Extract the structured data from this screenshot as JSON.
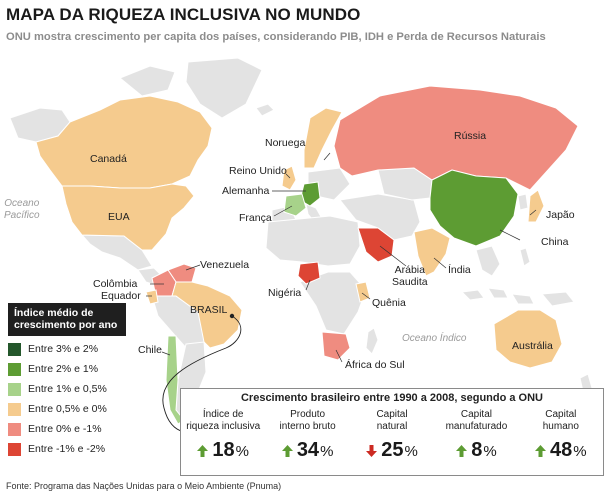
{
  "header": {
    "title": "MAPA DA RIQUEZA INCLUSIVA NO MUNDO",
    "subtitle": "ONU mostra crescimento per capita dos países, considerando PIB, IDH e Perda de Recursos Naturais"
  },
  "colors": {
    "land_neutral": "#e3e3e3",
    "land_border": "#ffffff",
    "water": "#ffffff"
  },
  "map": {
    "oceans": {
      "pacific": "Oceano\nPacífico",
      "indian": "Oceano Índico"
    },
    "countries": [
      {
        "name": "Canadá",
        "category": "0,5% e 0%"
      },
      {
        "name": "EUA",
        "category": "0,5% e 0%"
      },
      {
        "name": "Venezuela",
        "category": "0% e -1%"
      },
      {
        "name": "Colômbia",
        "category": "0% e -1%"
      },
      {
        "name": "Equador",
        "category": "0,5% e 0%"
      },
      {
        "name": "BRASIL",
        "category": "0,5% e 0%"
      },
      {
        "name": "Chile",
        "category": "1% e 0,5%"
      },
      {
        "name": "Noruega",
        "category": "0,5% e 0%"
      },
      {
        "name": "Reino Unido",
        "category": "0,5% e 0%"
      },
      {
        "name": "Alemanha",
        "category": "2% e 1%"
      },
      {
        "name": "França",
        "category": "1% e 0,5%"
      },
      {
        "name": "Rússia",
        "category": "0% e -1%"
      },
      {
        "name": "China",
        "category": "2% e 1%"
      },
      {
        "name": "Japão",
        "category": "0,5% e 0%"
      },
      {
        "name": "Índia",
        "category": "0,5% e 0%"
      },
      {
        "name": "Arábia\nSaudita",
        "category": "-1% e -2%"
      },
      {
        "name": "Nigéria",
        "category": "-1% e -2%"
      },
      {
        "name": "Quênia",
        "category": "0,5% e 0%"
      },
      {
        "name": "África do Sul",
        "category": "0% e -1%"
      },
      {
        "name": "Austrália",
        "category": "0,5% e 0%"
      }
    ]
  },
  "legend": {
    "title": "Índice médio de crescimento por ano",
    "items": [
      {
        "label": "Entre 3% e 2%",
        "color": "#24572b"
      },
      {
        "label": "Entre 2% e 1%",
        "color": "#5d9c33"
      },
      {
        "label": "Entre 1% e 0,5%",
        "color": "#a7d28a"
      },
      {
        "label": "Entre 0,5% e 0%",
        "color": "#f5cb8e"
      },
      {
        "label": "Entre 0% e -1%",
        "color": "#ef8c80"
      },
      {
        "label": "Entre -1% e -2%",
        "color": "#dd4534"
      }
    ]
  },
  "brazil_panel": {
    "title": "Crescimento brasileiro entre 1990 a 2008, segundo a ONU",
    "indicators": [
      {
        "label": "Índice de\nriqueza inclusiva",
        "value": "18",
        "unit": "%",
        "direction": "up"
      },
      {
        "label": "Produto\ninterno bruto",
        "value": "34",
        "unit": "%",
        "direction": "up"
      },
      {
        "label": "Capital\nnatural",
        "value": "25",
        "unit": "%",
        "direction": "down"
      },
      {
        "label": "Capital\nmanufaturado",
        "value": "8",
        "unit": "%",
        "direction": "up"
      },
      {
        "label": "Capital\nhumano",
        "value": "48",
        "unit": "%",
        "direction": "up"
      }
    ],
    "arrow_colors": {
      "up": "#5d9c33",
      "down": "#cc2a22"
    }
  },
  "source": "Fonte: Programa das Nações Unidas para o Meio Ambiente (Pnuma)"
}
